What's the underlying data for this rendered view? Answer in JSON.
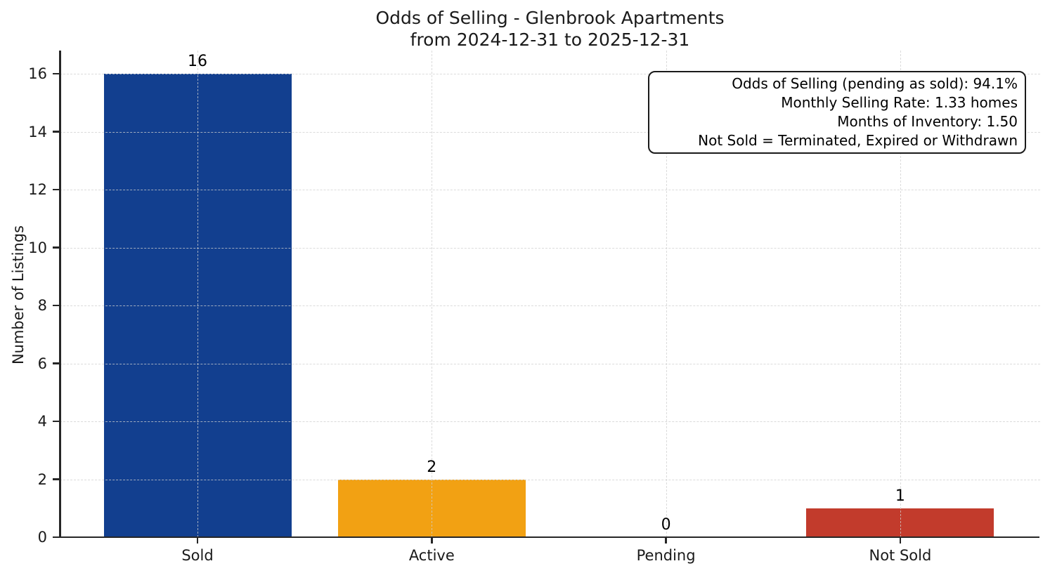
{
  "chart_data": {
    "type": "bar",
    "title": "Odds of Selling - Glenbrook Apartments",
    "subtitle": "from 2024-12-31 to 2025-12-31",
    "ylabel": "Number of Listings",
    "xlabel": "",
    "categories": [
      "Sold",
      "Active",
      "Pending",
      "Not Sold"
    ],
    "values": [
      16,
      2,
      0,
      1
    ],
    "value_labels": [
      "16",
      "2",
      "0",
      "1"
    ],
    "bar_colors": [
      "#123f8f",
      "#f2a113",
      "#9e9e9e",
      "#c23b2c"
    ],
    "yticks": [
      0,
      2,
      4,
      6,
      8,
      10,
      12,
      14,
      16
    ],
    "ylim": [
      0,
      16.8
    ],
    "grid": true,
    "legend": "none",
    "annotation_lines": [
      "Odds of Selling (pending as sold): 94.1%",
      "Monthly Selling Rate: 1.33 homes",
      "Months of Inventory: 1.50",
      "Not Sold = Terminated, Expired or Withdrawn"
    ],
    "colors": {
      "axis": "#262626",
      "grid": "#cfcfcf",
      "text": "#1a1a1a",
      "background": "#ffffff"
    }
  }
}
